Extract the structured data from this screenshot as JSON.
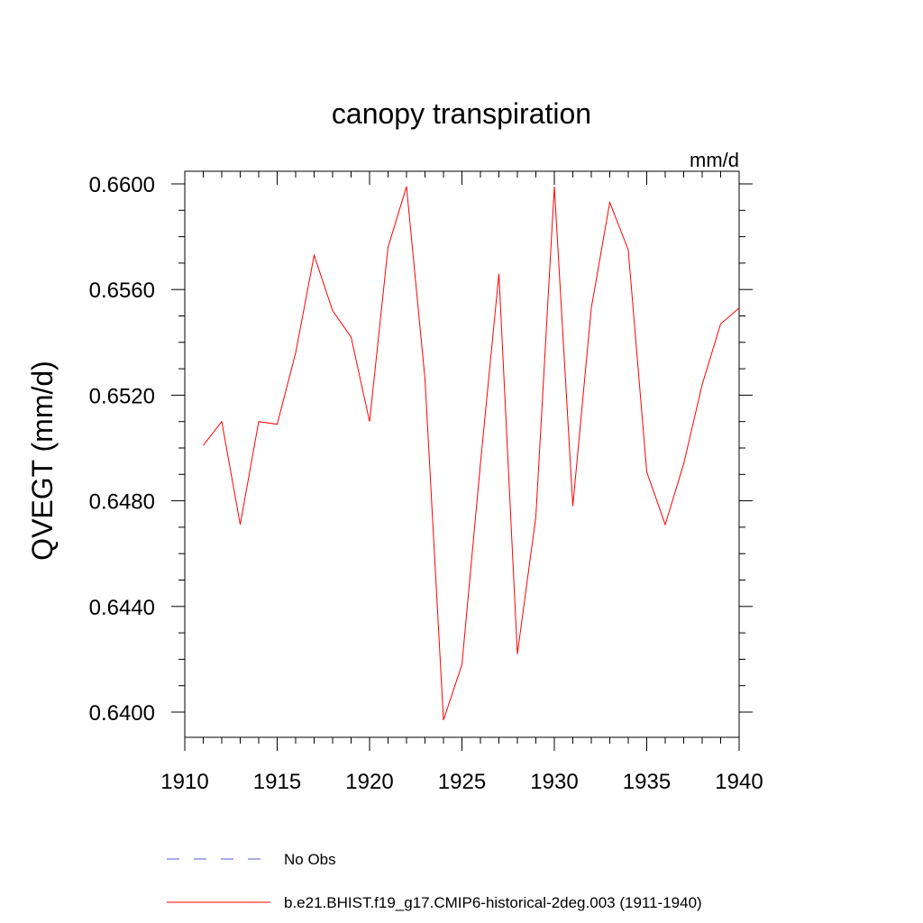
{
  "chart_data": {
    "type": "line",
    "title": "canopy transpiration",
    "units": "mm/d",
    "ylabel": "QVEGT  (mm/d)",
    "xlabel": "",
    "xlim": [
      1910,
      1940
    ],
    "ylim": [
      0.639,
      0.6605
    ],
    "xticks": [
      "1910",
      "1915",
      "1920",
      "1925",
      "1930",
      "1935",
      "1940"
    ],
    "yticks": [
      "0.6400",
      "0.6440",
      "0.6480",
      "0.6520",
      "0.6560",
      "0.6600"
    ],
    "grid": false,
    "legend_position": "bottom",
    "series": [
      {
        "name": "b.e21.BHIST.f19_g17.CMIP6-historical-2deg.003 (1911-1940)",
        "color": "#ff0000",
        "style": "solid",
        "x": [
          1911,
          1912,
          1913,
          1914,
          1915,
          1916,
          1917,
          1918,
          1919,
          1920,
          1921,
          1922,
          1923,
          1924,
          1925,
          1926,
          1927,
          1928,
          1929,
          1930,
          1931,
          1932,
          1933,
          1934,
          1935,
          1936,
          1937,
          1938,
          1939,
          1940
        ],
        "y": [
          0.6501,
          0.651,
          0.6471,
          0.651,
          0.6509,
          0.6536,
          0.6573,
          0.6552,
          0.6542,
          0.651,
          0.6576,
          0.6599,
          0.6526,
          0.6397,
          0.6418,
          0.6494,
          0.6566,
          0.6422,
          0.6474,
          0.6599,
          0.6478,
          0.6553,
          0.6593,
          0.6575,
          0.6491,
          0.6471,
          0.6494,
          0.6524,
          0.6547,
          0.6553
        ]
      },
      {
        "name": "No Obs",
        "color": "#5a5ad2",
        "style": "dashed",
        "x": [],
        "y": []
      }
    ]
  }
}
